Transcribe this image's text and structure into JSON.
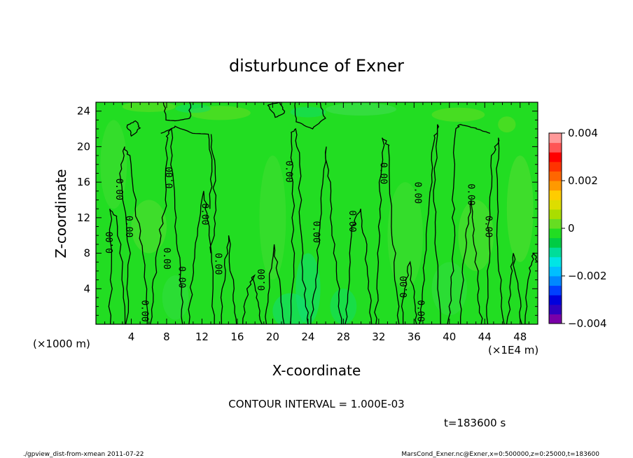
{
  "chart_data": {
    "type": "heatmap",
    "title": "disturbunce of Exner",
    "xlabel": "X-coordinate",
    "ylabel": "Z-coordinate",
    "x_unit_label": "(×1E4 m)",
    "y_unit_label": "(×1000 m)",
    "xlim": [
      0,
      50
    ],
    "ylim": [
      0,
      25
    ],
    "x_ticks": [
      4,
      8,
      12,
      16,
      20,
      24,
      28,
      32,
      36,
      40,
      44,
      48
    ],
    "y_ticks": [
      4,
      8,
      12,
      16,
      20,
      24
    ],
    "colorbar": {
      "range": [
        -0.004,
        0.004
      ],
      "tick_labels": [
        "0.004",
        "0.002",
        "0",
        "−0.002",
        "−0.004"
      ],
      "tick_values": [
        0.004,
        0.002,
        0,
        -0.002,
        -0.004
      ]
    },
    "contour_label": "0.00",
    "contour_interval_text": "CONTOUR INTERVAL = 1.000E-03",
    "time_text": "t=183600 s",
    "grid": false
  },
  "footer": {
    "left": "./gpview_dist-from-xmean  2011-07-22",
    "right": "MarsCond_Exner.nc@Exner,x=0:500000,z=0:25000,t=183600"
  },
  "colors": {
    "field_base": "#22dd22",
    "colorbar": [
      "#7a00a8",
      "#3000c0",
      "#0000dd",
      "#0040ff",
      "#0088ff",
      "#00bfff",
      "#00e5e5",
      "#00dd99",
      "#00cc44",
      "#22dd22",
      "#66dd22",
      "#aadd00",
      "#dddd00",
      "#ffcc00",
      "#ff9900",
      "#ff6600",
      "#ff3300",
      "#ff0000",
      "#ff5555",
      "#ff9999"
    ]
  }
}
